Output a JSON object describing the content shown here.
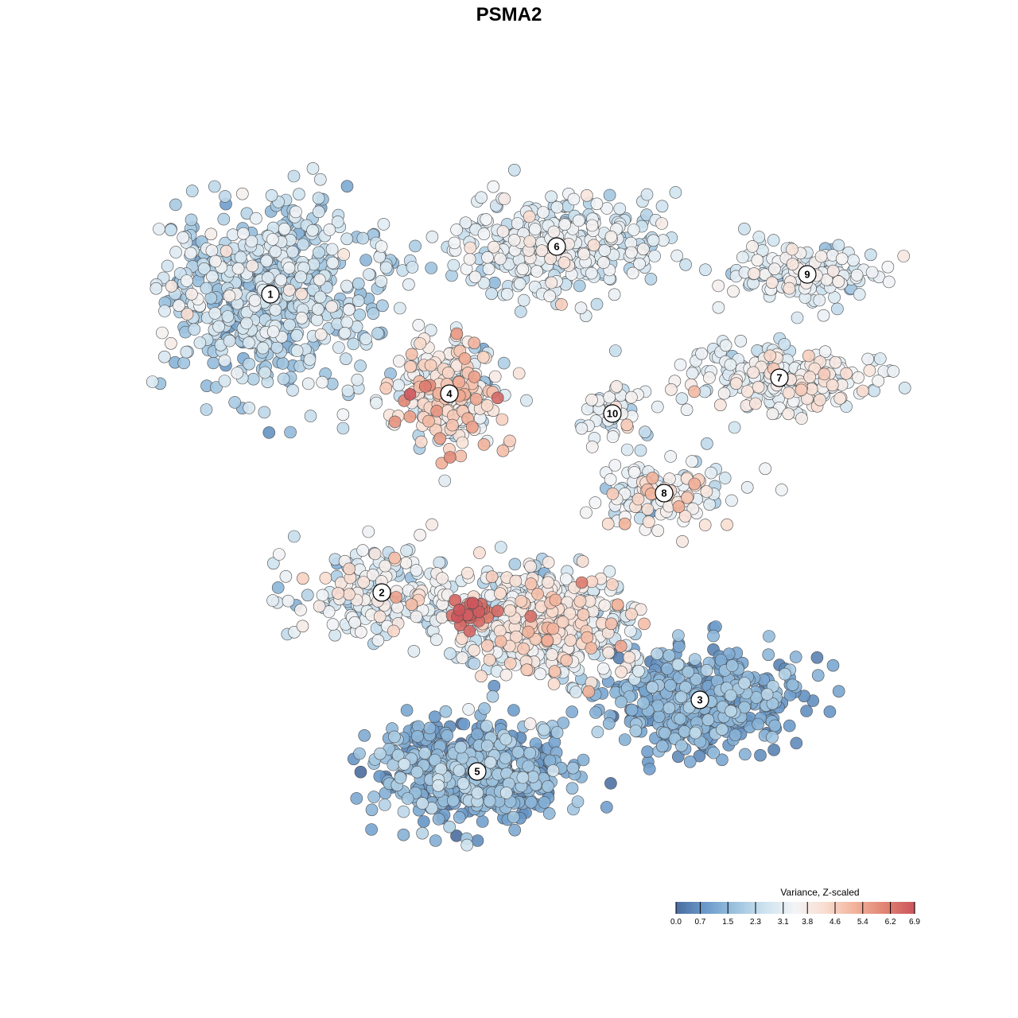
{
  "chart_data": {
    "type": "scatter",
    "title": "PSMA2",
    "xlabel": "",
    "ylabel": "",
    "grid": false,
    "legend_placement": "bottom-right",
    "color_scale": {
      "title": "Variance, Z-scaled",
      "ticks": [
        "0.0",
        "0.7",
        "1.5",
        "2.3",
        "3.1",
        "3.8",
        "4.6",
        "5.4",
        "6.2",
        "6.9"
      ],
      "min": 0.0,
      "max": 6.9,
      "colors": [
        "#4a6d9e",
        "#6b9bcb",
        "#9dc3df",
        "#cfe3ef",
        "#f3f4f6",
        "#f9ddd0",
        "#f2b29a",
        "#e08472",
        "#cc555c"
      ]
    },
    "clusters": [
      {
        "label": "1",
        "x": -3.0,
        "y": 2.8,
        "spread": [
          1.35,
          1.05
        ],
        "n": 620,
        "value": 2.2,
        "value_sd": 0.7
      },
      {
        "label": "6",
        "x": 0.6,
        "y": 3.4,
        "spread": [
          1.3,
          0.55
        ],
        "n": 380,
        "value": 2.8,
        "value_sd": 0.6
      },
      {
        "label": "9",
        "x": 3.75,
        "y": 3.05,
        "spread": [
          0.8,
          0.35
        ],
        "n": 150,
        "value": 2.9,
        "value_sd": 0.5
      },
      {
        "label": "7",
        "x": 3.4,
        "y": 1.75,
        "spread": [
          1.1,
          0.4
        ],
        "n": 230,
        "value": 3.3,
        "value_sd": 0.6
      },
      {
        "label": "4",
        "x": -0.75,
        "y": 1.55,
        "spread": [
          0.62,
          0.6
        ],
        "n": 260,
        "value": 3.6,
        "value_sd": 1.1
      },
      {
        "label": "10",
        "x": 1.3,
        "y": 1.3,
        "spread": [
          0.35,
          0.35
        ],
        "n": 45,
        "value": 3.0,
        "value_sd": 0.6
      },
      {
        "label": "8",
        "x": 1.95,
        "y": 0.3,
        "spread": [
          0.75,
          0.35
        ],
        "n": 130,
        "value": 3.2,
        "value_sd": 0.8
      },
      {
        "label": "2",
        "x": -1.6,
        "y": -0.95,
        "spread": [
          1.0,
          0.5
        ],
        "n": 200,
        "value": 3.0,
        "value_sd": 0.8
      },
      {
        "label": "3",
        "x": 2.4,
        "y": -2.3,
        "spread": [
          1.1,
          0.55
        ],
        "n": 470,
        "value": 1.1,
        "value_sd": 0.5
      },
      {
        "label": "5",
        "x": -0.4,
        "y": -3.2,
        "spread": [
          1.05,
          0.55
        ],
        "n": 560,
        "value": 1.2,
        "value_sd": 0.6
      },
      {
        "label": "",
        "x": 0.45,
        "y": -1.35,
        "spread": [
          1.0,
          0.65
        ],
        "n": 520,
        "value": 3.2,
        "value_sd": 0.9
      },
      {
        "label": "",
        "x": -0.5,
        "y": -1.2,
        "spread": [
          0.25,
          0.2
        ],
        "n": 28,
        "value": 6.5,
        "value_sd": 0.35
      }
    ]
  }
}
